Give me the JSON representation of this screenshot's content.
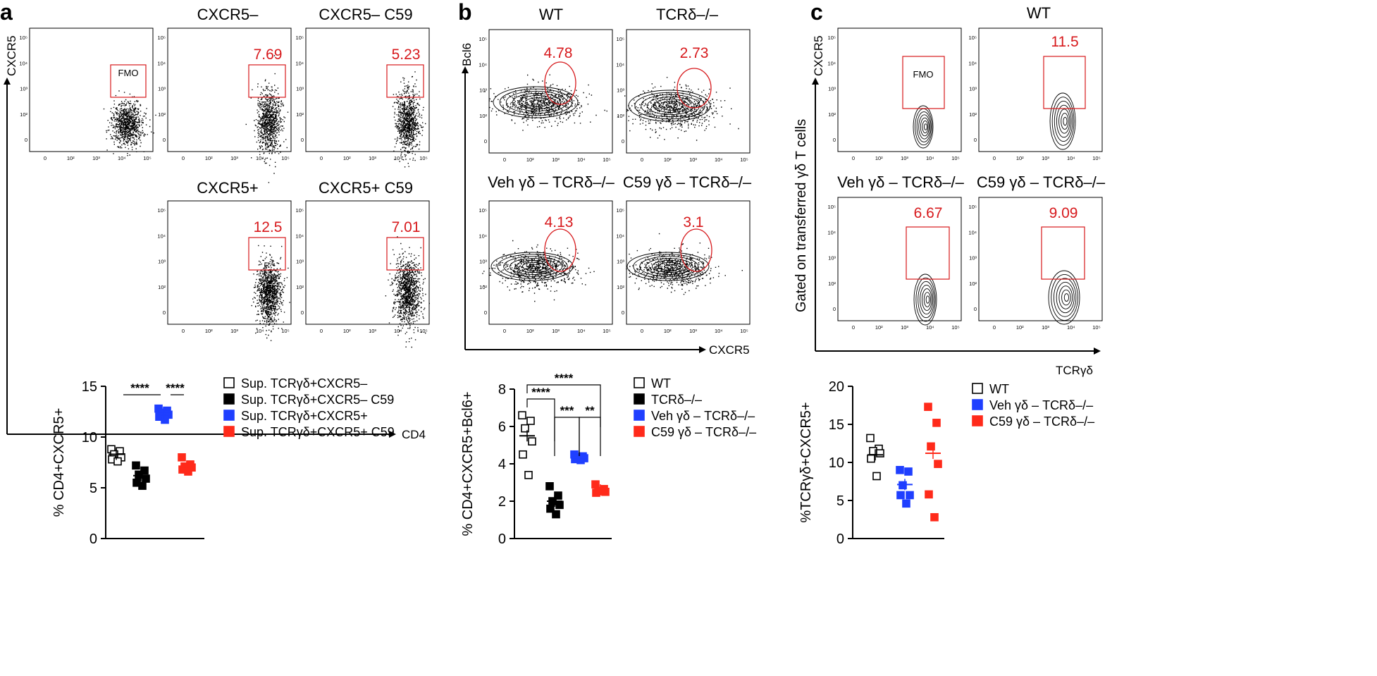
{
  "colors": {
    "wt": "#ffffff",
    "ko": "#000000",
    "veh": "#1f3fff",
    "c59": "#ff2a1a",
    "gate": "#d7191c"
  },
  "panel_a": {
    "letter": "a",
    "y_axis": "CXCR5",
    "x_axis": "CD4",
    "fmo_label": "FMO",
    "plots": [
      {
        "title": "",
        "gate_value": ""
      },
      {
        "title": "CXCR5–",
        "gate_value": "7.69"
      },
      {
        "title": "CXCR5– C59",
        "gate_value": "5.23"
      },
      {
        "title": "CXCR5+",
        "gate_value": "12.5"
      },
      {
        "title": "CXCR5+ C59",
        "gate_value": "7.01"
      }
    ]
  },
  "panel_b": {
    "letter": "b",
    "y_axis": "Bcl6",
    "x_axis": "CXCR5",
    "plots": [
      {
        "title": "WT",
        "gate_value": "4.78"
      },
      {
        "title": "TCRδ–/–",
        "gate_value": "2.73"
      },
      {
        "title": "Veh γδ – TCRδ–/–",
        "gate_value": "4.13"
      },
      {
        "title": "C59 γδ – TCRδ–/–",
        "gate_value": "3.1"
      }
    ]
  },
  "panel_c": {
    "letter": "c",
    "y_axis": "CXCR5",
    "side_label": "Gated on transferred γδ T cells",
    "x_axis": "TCRγδ",
    "fmo_label": "FMO",
    "plots": [
      {
        "title": "WT",
        "gate_value": ""
      },
      {
        "title": "",
        "gate_value": "11.5"
      },
      {
        "title": "Veh γδ – TCRδ–/–",
        "gate_value": "6.67"
      },
      {
        "title": "C59 γδ – TCRδ–/–",
        "gate_value": "9.09"
      }
    ]
  },
  "flow_ticks": {
    "x": [
      "0",
      "10²",
      "10³",
      "10⁴",
      "10⁵"
    ],
    "y": [
      "10⁵",
      "10⁴",
      "10³",
      "10²",
      "0"
    ]
  },
  "chart_data": [
    {
      "type": "scatter",
      "title": "",
      "xlabel": "",
      "ylabel": "% CD4+CXCR5+",
      "ylim": [
        0,
        15
      ],
      "yticks": [
        "0",
        "5",
        "10",
        "15"
      ],
      "significance": [
        "****",
        "****"
      ],
      "series": [
        {
          "name": "Sup. TCRγδ+CXCR5–",
          "values": [
            8.8,
            8.6,
            8.3,
            8.0,
            7.8,
            7.6
          ],
          "mean": 8.3
        },
        {
          "name": "Sup. TCRγδ+CXCR5– C59",
          "values": [
            7.2,
            6.7,
            6.3,
            5.9,
            5.5,
            5.2
          ],
          "mean": 6.2
        },
        {
          "name": "Sup. TCRγδ+CXCR5+",
          "values": [
            12.8,
            12.6,
            12.4,
            12.2,
            12.0,
            11.7
          ],
          "mean": 12.3
        },
        {
          "name": "Sup. TCRγδ+CXCR5+ C59",
          "values": [
            8.0,
            7.3,
            7.1,
            7.0,
            6.8,
            6.6
          ],
          "mean": 7.1
        }
      ]
    },
    {
      "type": "scatter",
      "title": "",
      "xlabel": "",
      "ylabel": "% CD4+CXCR5+Bcl6+",
      "ylim": [
        0,
        8
      ],
      "yticks": [
        "0",
        "2",
        "4",
        "6",
        "8"
      ],
      "significance": [
        "****",
        "****",
        "***",
        "**"
      ],
      "series": [
        {
          "name": "WT",
          "values": [
            6.6,
            6.3,
            5.9,
            5.2,
            4.5,
            3.4
          ],
          "mean": 5.5
        },
        {
          "name": "TCRδ–/–",
          "values": [
            2.8,
            2.3,
            2.0,
            1.8,
            1.6,
            1.3
          ],
          "mean": 2.0
        },
        {
          "name": "Veh γδ – TCRδ–/–",
          "values": [
            4.5,
            4.4,
            4.35,
            4.3,
            4.25,
            4.2
          ],
          "mean": 4.33
        },
        {
          "name": "C59 γδ – TCRδ–/–",
          "values": [
            2.9,
            2.65,
            2.55,
            2.5,
            2.45
          ],
          "mean": 2.6
        }
      ]
    },
    {
      "type": "scatter",
      "title": "",
      "xlabel": "",
      "ylabel": "%TCRγδ+CXCR5+",
      "ylim": [
        0,
        20
      ],
      "yticks": [
        "0",
        "5",
        "10",
        "15",
        "20"
      ],
      "series": [
        {
          "name": "WT",
          "values": [
            13.2,
            11.8,
            11.5,
            11.2,
            10.5,
            8.2
          ],
          "mean": 11.0
        },
        {
          "name": "Veh γδ – TCRδ–/–",
          "values": [
            9.0,
            8.8,
            7.0,
            5.7,
            5.7,
            4.6
          ],
          "mean": 7.1
        },
        {
          "name": "C59 γδ – TCRδ–/–",
          "values": [
            17.3,
            15.2,
            12.1,
            9.8,
            5.8,
            2.8
          ],
          "mean": 11.2
        }
      ]
    }
  ]
}
